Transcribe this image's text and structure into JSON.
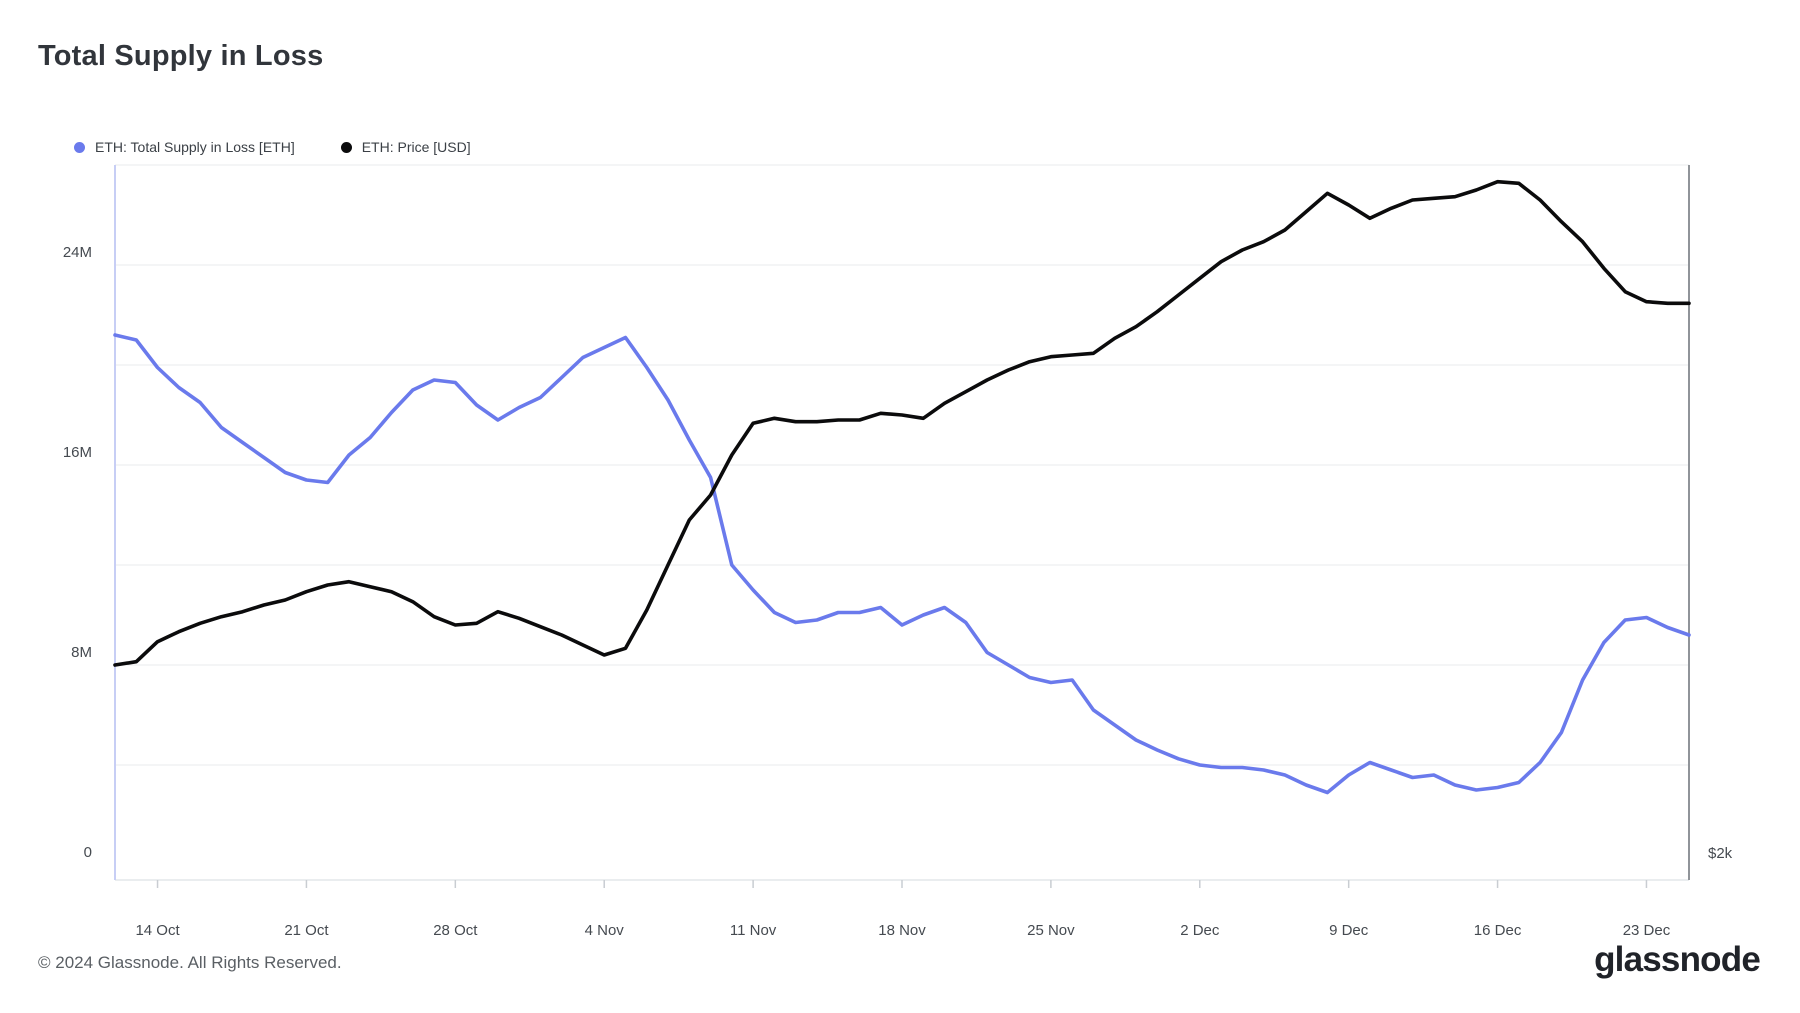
{
  "header": {
    "title": "Total Supply in Loss"
  },
  "legend": [
    {
      "label": "ETH: Total Supply in Loss [ETH]",
      "color": "#6a7aec"
    },
    {
      "label": "ETH: Price [USD]",
      "color": "#0b0b0c"
    }
  ],
  "footer": {
    "copyright": "© 2024 Glassnode. All Rights Reserved.",
    "brand": "glassnode"
  },
  "chart_data": {
    "type": "line",
    "title": "Total Supply in Loss",
    "xlabel": "",
    "ylabel_left": "Total Supply in Loss [ETH]",
    "ylabel_right": "Price [USD]",
    "grid": "horizontal, every 4M on left axis",
    "legend_position": "top-left",
    "x_tick_labels": [
      "14 Oct",
      "21 Oct",
      "28 Oct",
      "4 Nov",
      "11 Nov",
      "18 Nov",
      "25 Nov",
      "2 Dec",
      "9 Dec",
      "16 Dec",
      "23 Dec"
    ],
    "x_tick_indices": [
      2,
      9,
      16,
      23,
      30,
      37,
      44,
      51,
      58,
      65,
      72
    ],
    "y_left_tick_labels": [
      "0",
      "8M",
      "16M",
      "24M"
    ],
    "y_left_tick_values_m": [
      0,
      8,
      16,
      24
    ],
    "y_left_range_m": [
      0,
      28
    ],
    "y_right_tick_labels": [
      "$2k"
    ],
    "y_right_range_usd": [
      2000,
      4100
    ],
    "dates": [
      "2024-10-12",
      "2024-10-13",
      "2024-10-14",
      "2024-10-15",
      "2024-10-16",
      "2024-10-17",
      "2024-10-18",
      "2024-10-19",
      "2024-10-20",
      "2024-10-21",
      "2024-10-22",
      "2024-10-23",
      "2024-10-24",
      "2024-10-25",
      "2024-10-26",
      "2024-10-27",
      "2024-10-28",
      "2024-10-29",
      "2024-10-30",
      "2024-10-31",
      "2024-11-01",
      "2024-11-02",
      "2024-11-03",
      "2024-11-04",
      "2024-11-05",
      "2024-11-06",
      "2024-11-07",
      "2024-11-08",
      "2024-11-09",
      "2024-11-10",
      "2024-11-11",
      "2024-11-12",
      "2024-11-13",
      "2024-11-14",
      "2024-11-15",
      "2024-11-16",
      "2024-11-17",
      "2024-11-18",
      "2024-11-19",
      "2024-11-20",
      "2024-11-21",
      "2024-11-22",
      "2024-11-23",
      "2024-11-24",
      "2024-11-25",
      "2024-11-26",
      "2024-11-27",
      "2024-11-28",
      "2024-11-29",
      "2024-11-30",
      "2024-12-01",
      "2024-12-02",
      "2024-12-03",
      "2024-12-04",
      "2024-12-05",
      "2024-12-06",
      "2024-12-07",
      "2024-12-08",
      "2024-12-09",
      "2024-12-10",
      "2024-12-11",
      "2024-12-12",
      "2024-12-13",
      "2024-12-14",
      "2024-12-15",
      "2024-12-16",
      "2024-12-17",
      "2024-12-18",
      "2024-12-19",
      "2024-12-20",
      "2024-12-21",
      "2024-12-22",
      "2024-12-23",
      "2024-12-24",
      "2024-12-25"
    ],
    "series": [
      {
        "name": "ETH: Total Supply in Loss [ETH]",
        "axis": "left",
        "unit": "million ETH",
        "color": "#6a7aec",
        "values": [
          21.2,
          21.0,
          19.9,
          19.1,
          18.5,
          17.5,
          16.9,
          16.3,
          15.7,
          15.4,
          15.3,
          16.4,
          17.1,
          18.1,
          19.0,
          19.4,
          19.3,
          18.4,
          17.8,
          18.3,
          18.7,
          19.5,
          20.3,
          20.7,
          21.1,
          19.9,
          18.6,
          17.0,
          15.5,
          12.0,
          11.0,
          10.1,
          9.7,
          9.8,
          10.1,
          10.1,
          10.3,
          9.6,
          10.0,
          10.3,
          9.7,
          8.5,
          8.0,
          7.5,
          7.3,
          7.4,
          6.2,
          5.6,
          5.0,
          4.6,
          4.25,
          4.0,
          3.9,
          3.9,
          3.8,
          3.6,
          3.2,
          2.9,
          3.6,
          4.1,
          3.8,
          3.5,
          3.6,
          3.2,
          3.0,
          3.1,
          3.3,
          4.1,
          5.3,
          7.4,
          8.9,
          9.8,
          9.9,
          9.5,
          9.2
        ]
      },
      {
        "name": "ETH: Price [USD]",
        "axis": "right",
        "unit": "USD",
        "color": "#0b0b0c",
        "values": [
          2600,
          2610,
          2670,
          2700,
          2725,
          2745,
          2760,
          2780,
          2795,
          2820,
          2840,
          2850,
          2835,
          2820,
          2790,
          2745,
          2720,
          2725,
          2760,
          2740,
          2715,
          2690,
          2660,
          2630,
          2650,
          2765,
          2900,
          3035,
          3110,
          3230,
          3325,
          3340,
          3330,
          3330,
          3335,
          3335,
          3355,
          3350,
          3340,
          3385,
          3420,
          3455,
          3485,
          3510,
          3525,
          3530,
          3535,
          3580,
          3615,
          3660,
          3710,
          3760,
          3810,
          3845,
          3870,
          3905,
          3960,
          4015,
          3980,
          3940,
          3970,
          3995,
          4000,
          4005,
          4025,
          4050,
          4045,
          3995,
          3930,
          3870,
          3790,
          3720,
          3690,
          3685,
          3685
        ]
      }
    ]
  },
  "colors": {
    "gridline": "#f1f2f4",
    "left_axis_line": "#c7cef5",
    "right_border": "#909499",
    "bottom_axis_line": "#e4e7ea",
    "tick_mark": "#c9cdd2"
  }
}
